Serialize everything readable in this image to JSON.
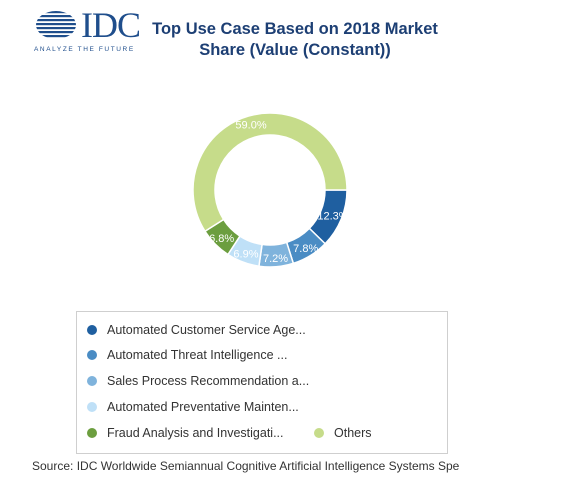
{
  "logo": {
    "text": "IDC",
    "tagline": "ANALYZE THE FUTURE"
  },
  "source": "Source: IDC Worldwide Semiannual Cognitive Artificial Intelligence Systems Spe",
  "colors": {
    "automated_customer_service": "#1f5fa0",
    "automated_threat_intelligence": "#4a8cc4",
    "sales_process_recommendation": "#7fb3dc",
    "automated_preventative_maintenance": "#bfe0f7",
    "fraud_analysis": "#6c9e3f",
    "others": "#c6dc8a",
    "title": "#1d3f74"
  },
  "chart_data": {
    "type": "pie",
    "title": "Top Use Case Based on 2018 Market Share (Value (Constant))",
    "donut": true,
    "legend_position": "bottom",
    "slices": [
      {
        "label": "Automated Customer Service Age...",
        "value": 12.3,
        "data_label": "12.3%",
        "color": "#1f5fa0"
      },
      {
        "label": "Automated Threat Intelligence ...",
        "value": 7.8,
        "data_label": "7.8%",
        "color": "#4a8cc4"
      },
      {
        "label": "Sales Process Recommendation a...",
        "value": 7.2,
        "data_label": "7.2%",
        "color": "#7fb3dc"
      },
      {
        "label": "Automated Preventative Mainten...",
        "value": 6.9,
        "data_label": "6.9%",
        "color": "#bfe0f7"
      },
      {
        "label": "Fraud Analysis and Investigati...",
        "value": 6.8,
        "data_label": "6.8%",
        "color": "#6c9e3f"
      },
      {
        "label": "Others",
        "value": 59.0,
        "data_label": "59.0%",
        "color": "#c6dc8a"
      }
    ]
  }
}
